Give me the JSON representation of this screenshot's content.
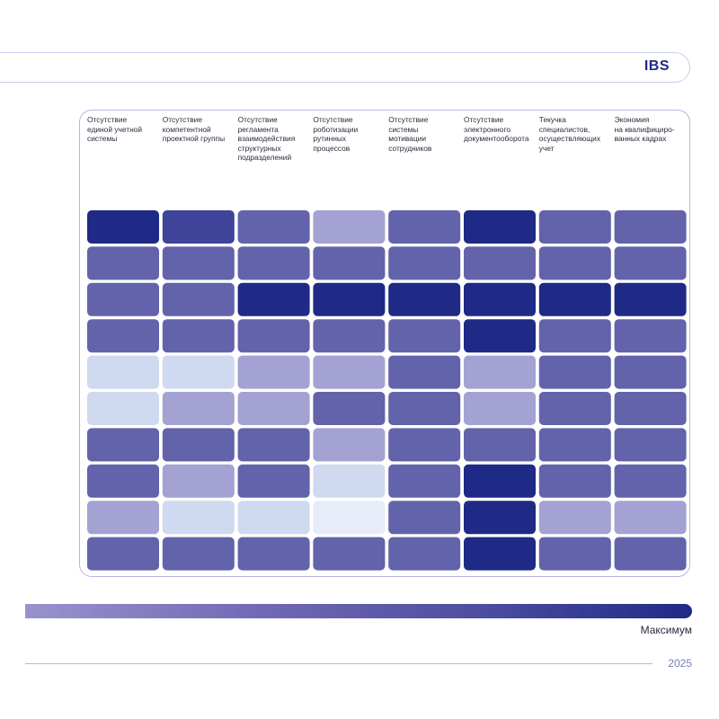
{
  "brand": {
    "logo_text": "IBS"
  },
  "chart_data": {
    "type": "heatmap",
    "columns": [
      "Отсутствие единой учетной системы",
      "Отсутствие компетентной проектной группы",
      "Отсутствие регламента взаимодействия структурных подразделений",
      "Отсутствие роботизации рутинных процессов",
      "Отсутствие системы мотивации сотрудников",
      "Отсутствие электронного документооборота",
      "Текучка специалистов, осуществляющих учет",
      "Экономия на квалифицированных кадрах"
    ],
    "column_lines": [
      [
        "Отсутствие",
        "единой учетной",
        "системы"
      ],
      [
        "Отсутствие",
        "компетентной",
        "проектной группы"
      ],
      [
        "Отсутствие",
        "регламента",
        "взаимодействия",
        "структурных",
        "подразделений"
      ],
      [
        "Отсутствие",
        "роботизации",
        "рутинных",
        "процессов"
      ],
      [
        "Отсутствие",
        "системы",
        "мотивации",
        "сотрудников"
      ],
      [
        "Отсутствие",
        "электронного",
        "документооборота"
      ],
      [
        "Текучка",
        "специалистов,",
        "осуществляющих",
        "учет"
      ],
      [
        "Экономия",
        "на квалифициро-",
        "ванных кадрах"
      ]
    ],
    "values": [
      [
        4,
        3,
        2,
        1,
        2,
        4,
        2,
        2
      ],
      [
        2,
        2,
        2,
        2,
        2,
        2,
        2,
        2
      ],
      [
        2,
        2,
        4,
        4,
        4,
        4,
        4,
        4
      ],
      [
        2,
        2,
        2,
        2,
        2,
        4,
        2,
        2
      ],
      [
        0,
        0,
        1,
        1,
        2,
        1,
        2,
        2
      ],
      [
        0,
        1,
        1,
        2,
        2,
        1,
        2,
        2
      ],
      [
        2,
        2,
        2,
        1,
        2,
        2,
        2,
        2
      ],
      [
        2,
        1,
        2,
        0,
        2,
        4,
        2,
        2
      ],
      [
        1,
        0,
        0,
        -1,
        2,
        4,
        1,
        1
      ],
      [
        2,
        2,
        2,
        2,
        2,
        4,
        2,
        2
      ]
    ],
    "scale": {
      "min": -1,
      "max": 4,
      "colors": {
        "-1": "#e8ebf8",
        "0": "#cfd9ef",
        "1": "#a3a2d3",
        "2": "#6363ab",
        "3": "#3e4499",
        "4": "#1f2a86"
      },
      "gradient_colors": [
        "#9993cc",
        "#7169b5",
        "#4b4c9e",
        "#1f2a86"
      ],
      "max_label": "Максимум"
    }
  },
  "footer": {
    "year": "2025"
  }
}
